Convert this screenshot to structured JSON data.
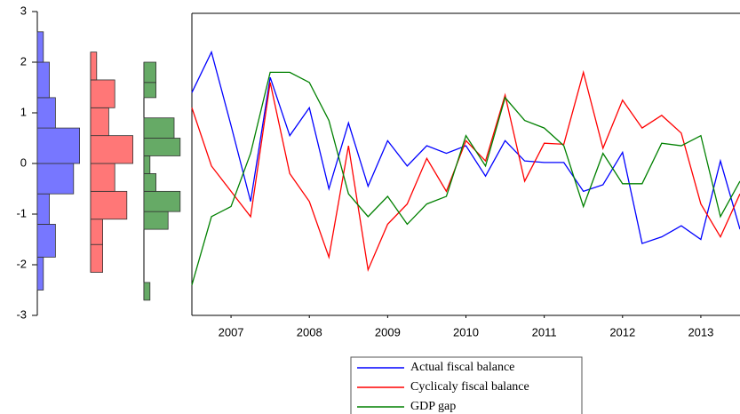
{
  "chart_data": [
    {
      "type": "line",
      "x": [
        2007,
        2007.25,
        2007.5,
        2007.75,
        2008,
        2008.25,
        2008.5,
        2008.75,
        2009,
        2009.25,
        2009.5,
        2009.75,
        2010,
        2010.25,
        2010.5,
        2010.75,
        2011,
        2011.25,
        2011.5,
        2011.75,
        2012,
        2012.25,
        2012.5,
        2012.75,
        2013,
        2013.25,
        2013.5,
        2013.75,
        2014
      ],
      "xlim": [
        2007,
        2014
      ],
      "xticks": [
        {
          "value": 2007.5,
          "label": "2007"
        },
        {
          "value": 2008.5,
          "label": "2008"
        },
        {
          "value": 2009.5,
          "label": "2009"
        },
        {
          "value": 2010.5,
          "label": "2010"
        },
        {
          "value": 2011.5,
          "label": "2011"
        },
        {
          "value": 2012.5,
          "label": "2012"
        },
        {
          "value": 2013.5,
          "label": "2013"
        }
      ],
      "ylim": [
        -3,
        3
      ],
      "yticks": [
        -3,
        -2,
        -1,
        0,
        1,
        2,
        3
      ],
      "series": [
        {
          "name": "Actual fiscal balance",
          "color": "#0000ff",
          "values": [
            1.4,
            2.2,
            0.75,
            -0.75,
            1.7,
            0.55,
            1.1,
            -0.5,
            0.8,
            -0.45,
            0.45,
            -0.05,
            0.35,
            0.2,
            0.35,
            -0.25,
            0.45,
            0.05,
            0.02,
            0.02,
            -0.55,
            -0.42,
            0.22,
            -1.58,
            -1.45,
            -1.23,
            -1.5,
            0.05,
            -1.3
          ]
        },
        {
          "name": "Cyclicaly fiscal balance",
          "color": "#ff0000",
          "values": [
            1.1,
            -0.05,
            -0.55,
            -1.05,
            1.6,
            -0.2,
            -0.75,
            -1.85,
            0.35,
            -2.1,
            -1.2,
            -0.8,
            0.1,
            -0.55,
            0.45,
            0.05,
            1.35,
            -0.35,
            0.4,
            0.38,
            1.8,
            0.3,
            1.25,
            0.7,
            0.95,
            0.6,
            -0.8,
            -1.45,
            -0.6
          ]
        },
        {
          "name": "GDP gap",
          "color": "#008000",
          "values": [
            -2.4,
            -1.05,
            -0.85,
            0.2,
            1.8,
            1.8,
            1.6,
            0.85,
            -0.6,
            -1.05,
            -0.65,
            -1.2,
            -0.8,
            -0.65,
            0.55,
            -0.05,
            1.3,
            0.85,
            0.7,
            0.35,
            -0.85,
            0.2,
            -0.4,
            -0.4,
            0.4,
            0.35,
            0.55,
            -1.05,
            -0.35
          ]
        }
      ]
    },
    {
      "type": "histogram",
      "color": "#7777ff",
      "bins": [
        -2.5,
        -1.85,
        -1.2,
        -0.6,
        0,
        0.7,
        1.3,
        2.0,
        2.6
      ],
      "counts": [
        1,
        3,
        2,
        6,
        7,
        3,
        2,
        1
      ]
    },
    {
      "type": "histogram",
      "color": "#ff7777",
      "bins": [
        -2.15,
        -1.6,
        -1.1,
        -0.55,
        0,
        0.55,
        1.1,
        1.65,
        2.2
      ],
      "counts": [
        2,
        2,
        6,
        4,
        7,
        3,
        4,
        1
      ]
    },
    {
      "type": "histogram",
      "color": "#66aa66",
      "bins": [
        -2.7,
        -2.35,
        -2.0,
        -1.65,
        -1.3,
        -0.95,
        -0.55,
        -0.2,
        0.15,
        0.5,
        0.9,
        1.3,
        1.6,
        2.0
      ],
      "counts": [
        1,
        0,
        0,
        0,
        4,
        6,
        2,
        1,
        6,
        5,
        0,
        2,
        2
      ]
    }
  ]
}
